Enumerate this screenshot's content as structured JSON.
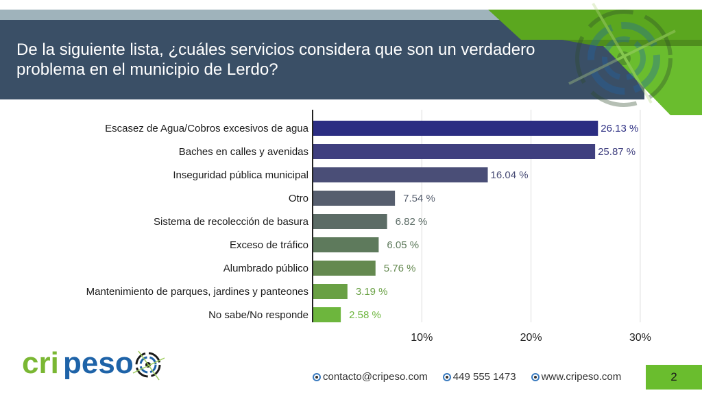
{
  "slide": {
    "title": "De la siguiente lista, ¿cuáles servicios considera que son un verdadero problema en el municipio de Lerdo?",
    "page_number": "2"
  },
  "colors": {
    "header_dark": "#3a4f66",
    "header_light": "#9fb3bb",
    "brand_green": "#6abd2e",
    "brand_blue": "#1e63a8"
  },
  "logo": {
    "text_green": "cri",
    "text_blue": "peso",
    "icon": "target-icon"
  },
  "footer": {
    "email": "contacto@cripeso.com",
    "phone": "449 555 1473",
    "website": "www.cripeso.com"
  },
  "chart_data": {
    "type": "bar",
    "orientation": "horizontal",
    "title": "De la siguiente lista, ¿cuáles servicios considera que son un verdadero problema en el municipio de Lerdo?",
    "xlabel": "",
    "ylabel": "",
    "xlim": [
      0,
      30
    ],
    "grid": true,
    "xticks": [
      10,
      20,
      30
    ],
    "xtick_labels": [
      "10%",
      "20%",
      "30%"
    ],
    "categories": [
      "Escasez de Agua/Cobros excesivos de agua",
      "Baches en calles y avenidas",
      "Inseguridad pública municipal",
      "Otro",
      "Sistema de recolección de basura",
      "Exceso de tráfico",
      "Alumbrado público",
      "Mantenimiento de parques, jardines y panteones",
      "No sabe/No responde"
    ],
    "values": [
      26.13,
      25.87,
      16.04,
      7.54,
      6.82,
      6.05,
      5.76,
      3.19,
      2.58
    ],
    "value_labels": [
      "26.13 %",
      "25.87 %",
      "16.04 %",
      "7.54 %",
      "6.82 %",
      "6.05 %",
      "5.76 %",
      "3.19 %",
      "2.58 %"
    ],
    "bar_colors": [
      "#2b2d82",
      "#3f3f7f",
      "#4a4e77",
      "#565e6e",
      "#5c6c66",
      "#5e7a5c",
      "#64894f",
      "#69a044",
      "#6db63d"
    ],
    "label_colors": [
      "#2b2d82",
      "#3f3f7f",
      "#4a4e77",
      "#565e6e",
      "#5c6c66",
      "#5e7a5c",
      "#64894f",
      "#69a044",
      "#6db63d"
    ]
  }
}
